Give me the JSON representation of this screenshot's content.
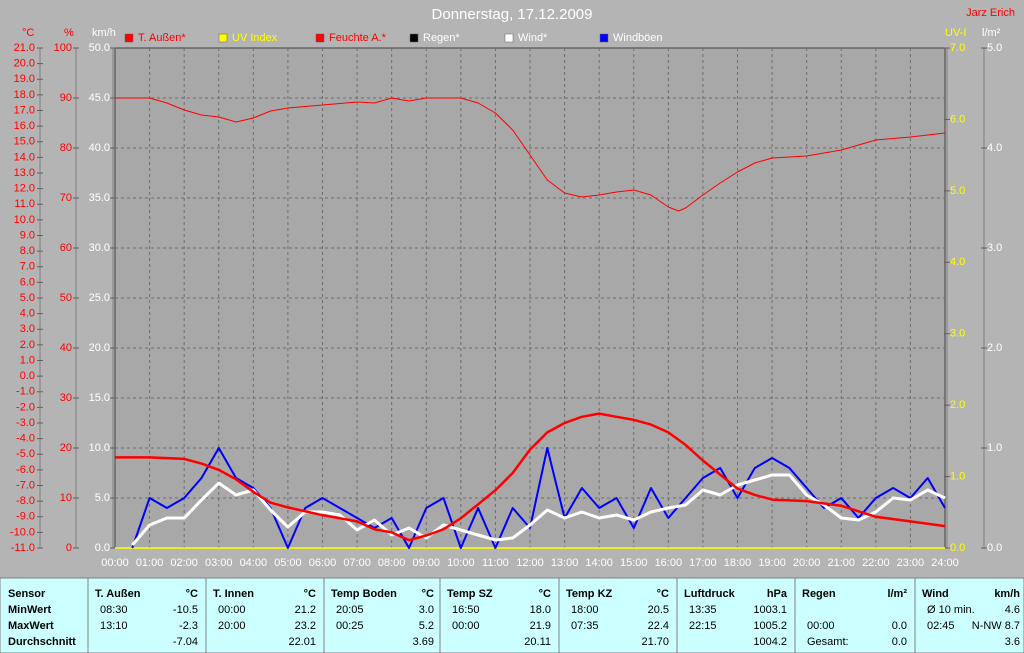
{
  "chart_data": {
    "type": "line",
    "title": "Donnerstag, 17.12.2009",
    "author": "Jarz Erich",
    "xlim": [
      0,
      24
    ],
    "xticks": [
      {
        "value": 0,
        "label": "00:00"
      },
      {
        "value": 1,
        "label": "01:00"
      },
      {
        "value": 2,
        "label": "02:00"
      },
      {
        "value": 3,
        "label": "03:00"
      },
      {
        "value": 4,
        "label": "04:00"
      },
      {
        "value": 5,
        "label": "05:00"
      },
      {
        "value": 6,
        "label": "06:00"
      },
      {
        "value": 7,
        "label": "07:00"
      },
      {
        "value": 8,
        "label": "08:00"
      },
      {
        "value": 9,
        "label": "09:00"
      },
      {
        "value": 10,
        "label": "10:00"
      },
      {
        "value": 11,
        "label": "11:00"
      },
      {
        "value": 12,
        "label": "12:00"
      },
      {
        "value": 13,
        "label": "13:00"
      },
      {
        "value": 14,
        "label": "14:00"
      },
      {
        "value": 15,
        "label": "15:00"
      },
      {
        "value": 16,
        "label": "16:00"
      },
      {
        "value": 17,
        "label": "17:00"
      },
      {
        "value": 18,
        "label": "18:00"
      },
      {
        "value": 19,
        "label": "19:00"
      },
      {
        "value": 20,
        "label": "20:00"
      },
      {
        "value": 21,
        "label": "21:00"
      },
      {
        "value": 22,
        "label": "22:00"
      },
      {
        "value": 23,
        "label": "23:00"
      },
      {
        "value": 24,
        "label": "24:00"
      }
    ],
    "grid": true,
    "yaxes": [
      {
        "label": "°C",
        "color": "#ff0000",
        "side": "left",
        "lim": [
          -11,
          21
        ],
        "ticks": [
          {
            "value": -11,
            "label": "-11.0"
          },
          {
            "value": -10,
            "label": "-10.0"
          },
          {
            "value": -9,
            "label": "-9.0"
          },
          {
            "value": -8,
            "label": "-8.0"
          },
          {
            "value": -7,
            "label": "-7.0"
          },
          {
            "value": -6,
            "label": "-6.0"
          },
          {
            "value": -5,
            "label": "-5.0"
          },
          {
            "value": -4,
            "label": "-4.0"
          },
          {
            "value": -3,
            "label": "-3.0"
          },
          {
            "value": -2,
            "label": "-2.0"
          },
          {
            "value": -1,
            "label": "-1.0"
          },
          {
            "value": 0,
            "label": "0.0"
          },
          {
            "value": 1,
            "label": "1.0"
          },
          {
            "value": 2,
            "label": "2.0"
          },
          {
            "value": 3,
            "label": "3.0"
          },
          {
            "value": 4,
            "label": "4.0"
          },
          {
            "value": 5,
            "label": "5.0"
          },
          {
            "value": 6,
            "label": "6.0"
          },
          {
            "value": 7,
            "label": "7.0"
          },
          {
            "value": 8,
            "label": "8.0"
          },
          {
            "value": 9,
            "label": "9.0"
          },
          {
            "value": 10,
            "label": "10.0"
          },
          {
            "value": 11,
            "label": "11.0"
          },
          {
            "value": 12,
            "label": "12.0"
          },
          {
            "value": 13,
            "label": "13.0"
          },
          {
            "value": 14,
            "label": "14.0"
          },
          {
            "value": 15,
            "label": "15.0"
          },
          {
            "value": 16,
            "label": "16.0"
          },
          {
            "value": 17,
            "label": "17.0"
          },
          {
            "value": 18,
            "label": "18.0"
          },
          {
            "value": 19,
            "label": "19.0"
          },
          {
            "value": 20,
            "label": "20.0"
          },
          {
            "value": 21,
            "label": "21.0"
          }
        ]
      },
      {
        "label": "%",
        "color": "#ff0000",
        "side": "left",
        "lim": [
          0,
          100
        ],
        "ticks": [
          0,
          10,
          20,
          30,
          40,
          50,
          60,
          70,
          80,
          90,
          100
        ]
      },
      {
        "label": "km/h",
        "color": "#ffffff",
        "side": "left",
        "lim": [
          0,
          50
        ],
        "ticks": [
          {
            "value": 0,
            "label": "0.0"
          },
          {
            "value": 5,
            "label": "5.0"
          },
          {
            "value": 10,
            "label": "10.0"
          },
          {
            "value": 15,
            "label": "15.0"
          },
          {
            "value": 20,
            "label": "20.0"
          },
          {
            "value": 25,
            "label": "25.0"
          },
          {
            "value": 30,
            "label": "30.0"
          },
          {
            "value": 35,
            "label": "35.0"
          },
          {
            "value": 40,
            "label": "40.0"
          },
          {
            "value": 45,
            "label": "45.0"
          },
          {
            "value": 50,
            "label": "50.0"
          }
        ]
      },
      {
        "label": "UV-I",
        "color": "#ffff00",
        "side": "right",
        "lim": [
          0,
          7
        ],
        "ticks": [
          {
            "value": 0,
            "label": "0.0"
          },
          {
            "value": 1,
            "label": "1.0"
          },
          {
            "value": 2,
            "label": "2.0"
          },
          {
            "value": 3,
            "label": "3.0"
          },
          {
            "value": 4,
            "label": "4.0"
          },
          {
            "value": 5,
            "label": "5.0"
          },
          {
            "value": 6,
            "label": "6.0"
          },
          {
            "value": 7,
            "label": "7.0"
          }
        ]
      },
      {
        "label": "l/m²",
        "color": "#ffffff",
        "side": "right",
        "lim": [
          0,
          5
        ],
        "ticks": [
          {
            "value": 0,
            "label": "0.0"
          },
          {
            "value": 1,
            "label": "1.0"
          },
          {
            "value": 2,
            "label": "2.0"
          },
          {
            "value": 3,
            "label": "3.0"
          },
          {
            "value": 4,
            "label": "4.0"
          },
          {
            "value": 5,
            "label": "5.0"
          }
        ]
      }
    ],
    "series": [
      {
        "name": "T. Außen*",
        "color": "#ff0000",
        "text_color": "#ff0000",
        "axis": 0,
        "width": 2.5,
        "x": [
          0,
          1,
          2,
          2.5,
          3,
          3.5,
          4,
          4.5,
          5,
          6,
          7,
          7.5,
          8,
          8.5,
          9,
          9.5,
          10,
          10.5,
          11,
          11.5,
          12,
          12.5,
          13,
          13.5,
          14,
          14.5,
          15,
          15.5,
          16,
          16.5,
          17,
          17.5,
          18,
          18.5,
          19,
          20,
          21,
          22,
          23,
          24
        ],
        "values": [
          -5.2,
          -5.2,
          -5.3,
          -5.6,
          -6.0,
          -6.6,
          -7.4,
          -8.1,
          -8.4,
          -8.9,
          -9.3,
          -9.8,
          -10.0,
          -10.5,
          -10.2,
          -9.8,
          -9.1,
          -8.2,
          -7.3,
          -6.2,
          -4.7,
          -3.6,
          -3.0,
          -2.6,
          -2.4,
          -2.6,
          -2.8,
          -3.1,
          -3.6,
          -4.4,
          -5.4,
          -6.3,
          -7.2,
          -7.6,
          -7.9,
          -8.0,
          -8.3,
          -9.0,
          -9.3,
          -9.6
        ]
      },
      {
        "name": "UV Index",
        "color": "#ffff00",
        "text_color": "#ffff00",
        "axis": 3,
        "width": 1.5,
        "x": [
          0,
          24
        ],
        "values": [
          0,
          0
        ]
      },
      {
        "name": "Feuchte A.*",
        "color": "#ff0000",
        "text_color": "#ff0000",
        "axis": 1,
        "width": 1,
        "x": [
          0,
          1,
          1.5,
          2,
          2.5,
          3,
          3.5,
          4,
          4.5,
          5,
          6,
          7,
          7.5,
          8,
          8.5,
          9,
          10,
          10.5,
          11,
          11.5,
          12,
          12.5,
          13,
          13.5,
          14,
          14.5,
          15,
          15.5,
          16,
          16.3,
          16.5,
          17,
          17.5,
          18,
          18.5,
          19,
          20,
          20.5,
          21,
          22,
          23,
          24
        ],
        "values": [
          90,
          90,
          89,
          87.6,
          86.6,
          86.2,
          85.2,
          86,
          87.4,
          88,
          88.6,
          89.2,
          89,
          90,
          89.4,
          90,
          90,
          89,
          87,
          83.6,
          78.6,
          73.6,
          71,
          70.2,
          70.6,
          71.2,
          71.6,
          70.6,
          68.2,
          67.4,
          68,
          70.6,
          73,
          75.2,
          77,
          78,
          78.4,
          79,
          79.6,
          81.6,
          82.2,
          83
        ]
      },
      {
        "name": "Regen*",
        "color": "#000000",
        "text_color": "#ffffff",
        "axis": 4,
        "width": 1,
        "x": [
          0,
          24
        ],
        "values": [
          0,
          0
        ]
      },
      {
        "name": "Wind*",
        "color": "#ffffff",
        "text_color": "#ffffff",
        "axis": 2,
        "width": 3,
        "x": [
          0.5,
          1,
          1.5,
          2,
          2.5,
          3,
          3.5,
          4,
          4.5,
          5,
          5.5,
          6,
          6.5,
          7,
          7.5,
          8,
          8.5,
          9,
          9.5,
          10,
          10.5,
          11,
          11.5,
          12,
          12.5,
          13,
          13.5,
          14,
          14.5,
          15,
          15.5,
          16,
          16.5,
          17,
          17.5,
          18,
          18.5,
          19,
          19.5,
          20,
          20.5,
          21,
          21.5,
          22,
          22.5,
          23,
          23.5,
          24
        ],
        "values": [
          0.3,
          2.3,
          3.0,
          3.0,
          4.8,
          6.5,
          5.3,
          5.8,
          3.8,
          2.1,
          3.6,
          3.6,
          3.3,
          1.8,
          2.8,
          1.3,
          2.0,
          1.0,
          2.3,
          1.8,
          1.3,
          0.8,
          1.0,
          2.3,
          3.8,
          3.0,
          3.6,
          3.0,
          3.3,
          2.8,
          3.6,
          4.0,
          4.3,
          5.8,
          5.3,
          6.3,
          6.8,
          7.3,
          7.3,
          5.3,
          4.3,
          3.0,
          2.8,
          3.6,
          5.0,
          4.8,
          5.8,
          5.0
        ]
      },
      {
        "name": "Windböen",
        "color": "#0000ff",
        "text_color": "#ffffff",
        "axis": 2,
        "width": 2,
        "x": [
          0.5,
          1,
          1.5,
          2,
          2.5,
          3,
          3.5,
          4,
          4.5,
          5,
          5.5,
          6,
          6.5,
          7,
          7.5,
          8,
          8.5,
          9,
          9.5,
          10,
          10.5,
          11,
          11.5,
          12,
          12.5,
          13,
          13.5,
          14,
          14.5,
          15,
          15.5,
          16,
          16.5,
          17,
          17.5,
          18,
          18.5,
          19,
          19.5,
          20,
          20.5,
          21,
          21.5,
          22,
          22.5,
          23,
          23.5,
          24
        ],
        "values": [
          0,
          5,
          4,
          5,
          7,
          10,
          7,
          6,
          4,
          0,
          4,
          5,
          4,
          3,
          2,
          3,
          0,
          4,
          5,
          0,
          4,
          0,
          4,
          2,
          10,
          3,
          6,
          4,
          5,
          2,
          6,
          3,
          5,
          7,
          8,
          5,
          8,
          9,
          8,
          6,
          4,
          5,
          3,
          5,
          6,
          5,
          7,
          4
        ]
      }
    ],
    "draw_order": [
      3,
      1,
      2,
      5,
      4,
      0
    ]
  },
  "table": {
    "header": "Sensor",
    "row_labels": [
      "MinWert",
      "MaxWert",
      "Durchschnitt"
    ],
    "columns": [
      {
        "name": "T. Außen",
        "unit": "°C",
        "cells": [
          {
            "label": "08:30",
            "value": "-10.5"
          },
          {
            "label": "13:10",
            "value": "-2.3"
          },
          {
            "value": "-7.04"
          }
        ]
      },
      {
        "name": "T. Innen",
        "unit": "°C",
        "cells": [
          {
            "label": "00:00",
            "value": "21.2"
          },
          {
            "label": "20:00",
            "value": "23.2"
          },
          {
            "value": "22.01"
          }
        ]
      },
      {
        "name": "Temp Boden",
        "unit": "°C",
        "cells": [
          {
            "label": "20:05",
            "value": "3.0"
          },
          {
            "label": "00:25",
            "value": "5.2"
          },
          {
            "value": "3.69"
          }
        ]
      },
      {
        "name": "Temp SZ",
        "unit": "°C",
        "cells": [
          {
            "label": "16:50",
            "value": "18.0"
          },
          {
            "label": "00:00",
            "value": "21.9"
          },
          {
            "value": "20.11"
          }
        ]
      },
      {
        "name": "Temp KZ",
        "unit": "°C",
        "cells": [
          {
            "label": "18:00",
            "value": "20.5"
          },
          {
            "label": "07:35",
            "value": "22.4"
          },
          {
            "value": "21.70"
          }
        ]
      },
      {
        "name": "Luftdruck",
        "unit": "hPa",
        "cells": [
          {
            "label": "13:35",
            "value": "1003.1"
          },
          {
            "label": "22:15",
            "value": "1005.2"
          },
          {
            "value": "1004.2"
          }
        ]
      },
      {
        "name": "Regen",
        "unit": "l/m²",
        "cells": [
          null,
          {
            "label": "00:00",
            "value": "0.0"
          },
          {
            "label": "Gesamt:",
            "value": "0.0"
          }
        ]
      },
      {
        "name": "Wind",
        "unit": "km/h",
        "cells": [
          {
            "label": "Ø 10 min.",
            "value": "4.6"
          },
          {
            "label": "02:45",
            "value": "N-NW 8.7"
          },
          {
            "value": "3.6"
          }
        ]
      }
    ]
  }
}
